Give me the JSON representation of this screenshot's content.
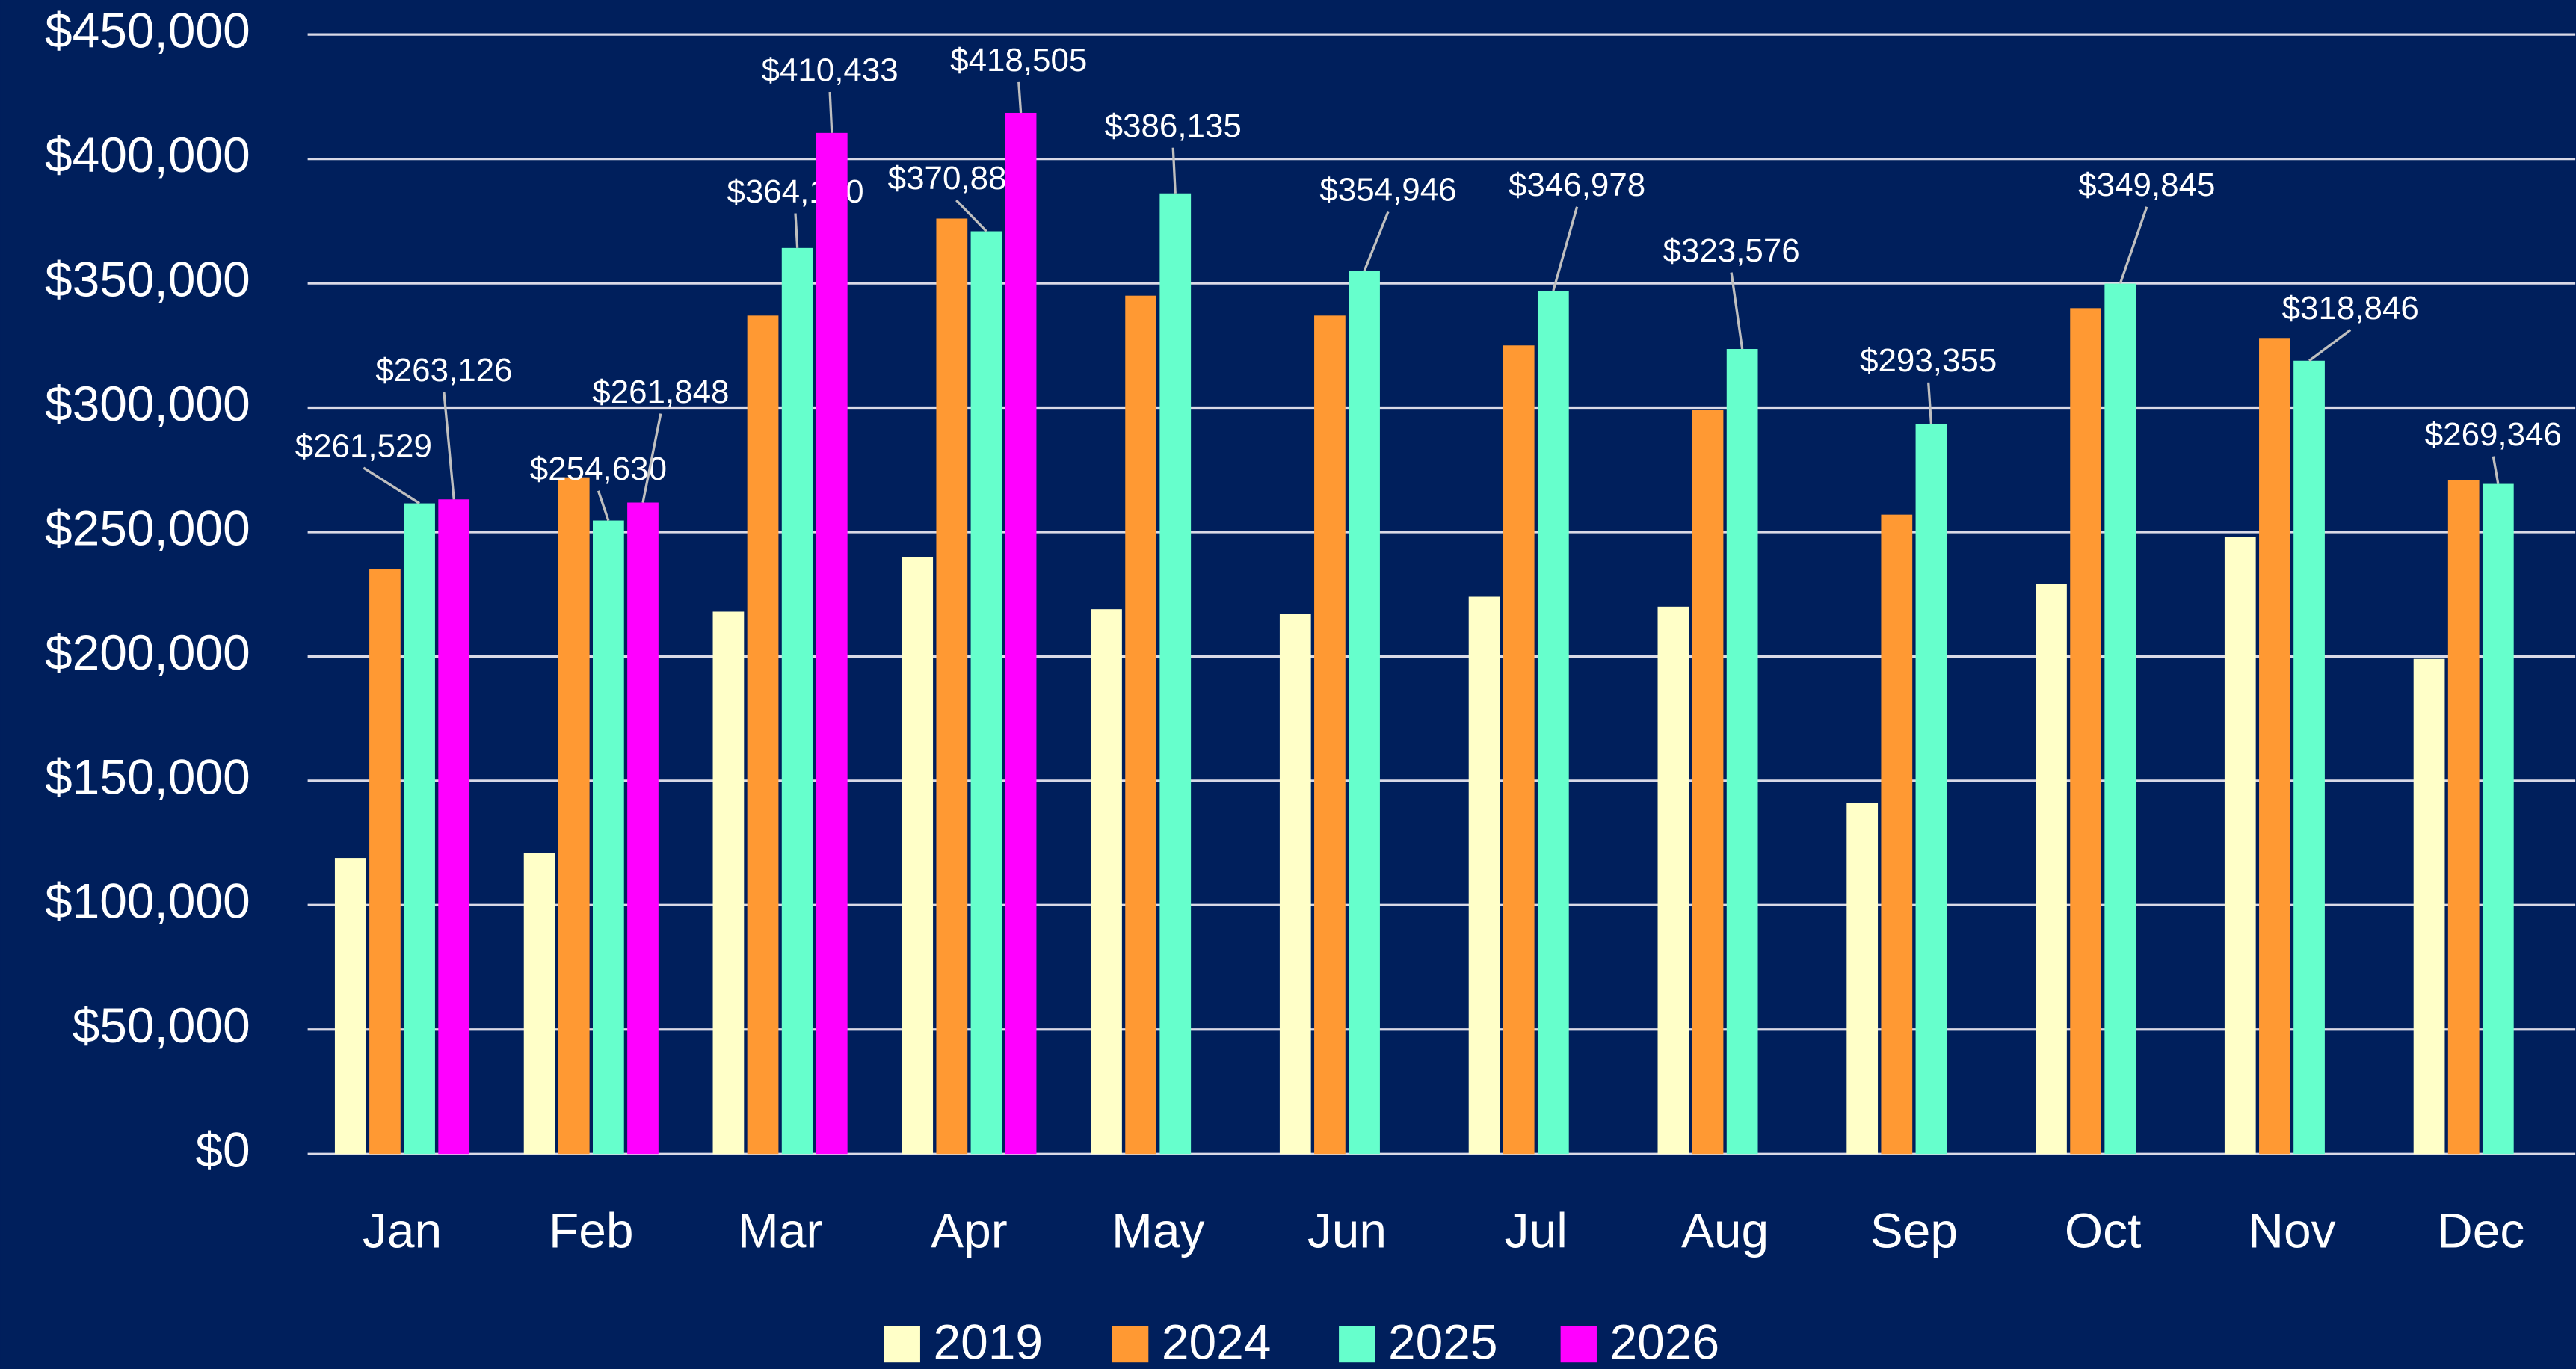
{
  "chart_data": {
    "type": "bar",
    "categories": [
      "Jan",
      "Feb",
      "Mar",
      "Apr",
      "May",
      "Jun",
      "Jul",
      "Aug",
      "Sep",
      "Oct",
      "Nov",
      "Dec"
    ],
    "series": [
      {
        "name": "2019",
        "color": "#ffffc8",
        "values": [
          119000,
          121000,
          218000,
          240000,
          219000,
          217000,
          224000,
          220000,
          141000,
          229000,
          248000,
          199000
        ]
      },
      {
        "name": "2024",
        "color": "#ff9933",
        "values": [
          235000,
          272000,
          337000,
          376000,
          345000,
          337000,
          325000,
          299000,
          257000,
          340000,
          328000,
          271000
        ]
      },
      {
        "name": "2025",
        "color": "#66ffcc",
        "values": [
          261529,
          254630,
          364180,
          370886,
          386135,
          354946,
          346978,
          323576,
          293355,
          349845,
          318846,
          269346
        ],
        "value_labels": [
          "$261,529",
          "$254,630",
          "$364,180",
          "$370,886",
          "$386,135",
          "$354,946",
          "$346,978",
          "$323,576",
          "$293,355",
          "$349,845",
          "$318,846",
          "$269,346"
        ]
      },
      {
        "name": "2026",
        "color": "#ff00ff",
        "values": [
          263126,
          261848,
          410433,
          418505,
          null,
          null,
          null,
          null,
          null,
          null,
          null,
          null
        ],
        "value_labels": [
          "$263,126",
          "$261,848",
          "$410,433",
          "$418,505",
          null,
          null,
          null,
          null,
          null,
          null,
          null,
          null
        ]
      }
    ],
    "ylim": [
      0,
      450000
    ],
    "yticks": [
      {
        "value": 0,
        "label": "$0"
      },
      {
        "value": 50000,
        "label": "$50,000"
      },
      {
        "value": 100000,
        "label": "$100,000"
      },
      {
        "value": 150000,
        "label": "$150,000"
      },
      {
        "value": 200000,
        "label": "$200,000"
      },
      {
        "value": 250000,
        "label": "$250,000"
      },
      {
        "value": 300000,
        "label": "$300,000"
      },
      {
        "value": 350000,
        "label": "$350,000"
      },
      {
        "value": 400000,
        "label": "$400,000"
      },
      {
        "value": 450000,
        "label": "$450,000"
      }
    ],
    "grid": true,
    "legend": "bottom"
  }
}
